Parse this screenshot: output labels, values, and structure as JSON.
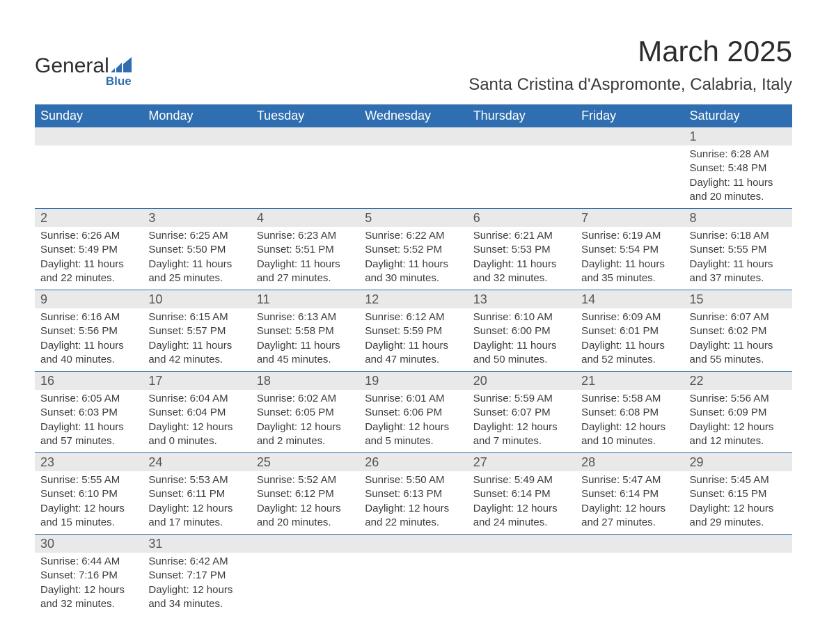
{
  "brand": {
    "name_primary": "General",
    "name_secondary": "Blue",
    "primary_color": "#2d2d2d",
    "accent_color": "#2f6eb0"
  },
  "header": {
    "month_title": "March 2025",
    "location": "Santa Cristina d'Aspromonte, Calabria, Italy"
  },
  "style": {
    "header_bg": "#2f6eb0",
    "header_text": "#ffffff",
    "daynum_bg": "#e9e9e9",
    "row_divider": "#2f6eb0",
    "body_text": "#3c3c3c",
    "title_fontsize": 42,
    "location_fontsize": 24,
    "header_fontsize": 18,
    "daynum_fontsize": 18,
    "body_fontsize": 15,
    "page_bg": "#ffffff"
  },
  "weekdays": [
    "Sunday",
    "Monday",
    "Tuesday",
    "Wednesday",
    "Thursday",
    "Friday",
    "Saturday"
  ],
  "weeks": [
    [
      null,
      null,
      null,
      null,
      null,
      null,
      {
        "day": "1",
        "sunrise": "Sunrise: 6:28 AM",
        "sunset": "Sunset: 5:48 PM",
        "daylight": "Daylight: 11 hours and 20 minutes."
      }
    ],
    [
      {
        "day": "2",
        "sunrise": "Sunrise: 6:26 AM",
        "sunset": "Sunset: 5:49 PM",
        "daylight": "Daylight: 11 hours and 22 minutes."
      },
      {
        "day": "3",
        "sunrise": "Sunrise: 6:25 AM",
        "sunset": "Sunset: 5:50 PM",
        "daylight": "Daylight: 11 hours and 25 minutes."
      },
      {
        "day": "4",
        "sunrise": "Sunrise: 6:23 AM",
        "sunset": "Sunset: 5:51 PM",
        "daylight": "Daylight: 11 hours and 27 minutes."
      },
      {
        "day": "5",
        "sunrise": "Sunrise: 6:22 AM",
        "sunset": "Sunset: 5:52 PM",
        "daylight": "Daylight: 11 hours and 30 minutes."
      },
      {
        "day": "6",
        "sunrise": "Sunrise: 6:21 AM",
        "sunset": "Sunset: 5:53 PM",
        "daylight": "Daylight: 11 hours and 32 minutes."
      },
      {
        "day": "7",
        "sunrise": "Sunrise: 6:19 AM",
        "sunset": "Sunset: 5:54 PM",
        "daylight": "Daylight: 11 hours and 35 minutes."
      },
      {
        "day": "8",
        "sunrise": "Sunrise: 6:18 AM",
        "sunset": "Sunset: 5:55 PM",
        "daylight": "Daylight: 11 hours and 37 minutes."
      }
    ],
    [
      {
        "day": "9",
        "sunrise": "Sunrise: 6:16 AM",
        "sunset": "Sunset: 5:56 PM",
        "daylight": "Daylight: 11 hours and 40 minutes."
      },
      {
        "day": "10",
        "sunrise": "Sunrise: 6:15 AM",
        "sunset": "Sunset: 5:57 PM",
        "daylight": "Daylight: 11 hours and 42 minutes."
      },
      {
        "day": "11",
        "sunrise": "Sunrise: 6:13 AM",
        "sunset": "Sunset: 5:58 PM",
        "daylight": "Daylight: 11 hours and 45 minutes."
      },
      {
        "day": "12",
        "sunrise": "Sunrise: 6:12 AM",
        "sunset": "Sunset: 5:59 PM",
        "daylight": "Daylight: 11 hours and 47 minutes."
      },
      {
        "day": "13",
        "sunrise": "Sunrise: 6:10 AM",
        "sunset": "Sunset: 6:00 PM",
        "daylight": "Daylight: 11 hours and 50 minutes."
      },
      {
        "day": "14",
        "sunrise": "Sunrise: 6:09 AM",
        "sunset": "Sunset: 6:01 PM",
        "daylight": "Daylight: 11 hours and 52 minutes."
      },
      {
        "day": "15",
        "sunrise": "Sunrise: 6:07 AM",
        "sunset": "Sunset: 6:02 PM",
        "daylight": "Daylight: 11 hours and 55 minutes."
      }
    ],
    [
      {
        "day": "16",
        "sunrise": "Sunrise: 6:05 AM",
        "sunset": "Sunset: 6:03 PM",
        "daylight": "Daylight: 11 hours and 57 minutes."
      },
      {
        "day": "17",
        "sunrise": "Sunrise: 6:04 AM",
        "sunset": "Sunset: 6:04 PM",
        "daylight": "Daylight: 12 hours and 0 minutes."
      },
      {
        "day": "18",
        "sunrise": "Sunrise: 6:02 AM",
        "sunset": "Sunset: 6:05 PM",
        "daylight": "Daylight: 12 hours and 2 minutes."
      },
      {
        "day": "19",
        "sunrise": "Sunrise: 6:01 AM",
        "sunset": "Sunset: 6:06 PM",
        "daylight": "Daylight: 12 hours and 5 minutes."
      },
      {
        "day": "20",
        "sunrise": "Sunrise: 5:59 AM",
        "sunset": "Sunset: 6:07 PM",
        "daylight": "Daylight: 12 hours and 7 minutes."
      },
      {
        "day": "21",
        "sunrise": "Sunrise: 5:58 AM",
        "sunset": "Sunset: 6:08 PM",
        "daylight": "Daylight: 12 hours and 10 minutes."
      },
      {
        "day": "22",
        "sunrise": "Sunrise: 5:56 AM",
        "sunset": "Sunset: 6:09 PM",
        "daylight": "Daylight: 12 hours and 12 minutes."
      }
    ],
    [
      {
        "day": "23",
        "sunrise": "Sunrise: 5:55 AM",
        "sunset": "Sunset: 6:10 PM",
        "daylight": "Daylight: 12 hours and 15 minutes."
      },
      {
        "day": "24",
        "sunrise": "Sunrise: 5:53 AM",
        "sunset": "Sunset: 6:11 PM",
        "daylight": "Daylight: 12 hours and 17 minutes."
      },
      {
        "day": "25",
        "sunrise": "Sunrise: 5:52 AM",
        "sunset": "Sunset: 6:12 PM",
        "daylight": "Daylight: 12 hours and 20 minutes."
      },
      {
        "day": "26",
        "sunrise": "Sunrise: 5:50 AM",
        "sunset": "Sunset: 6:13 PM",
        "daylight": "Daylight: 12 hours and 22 minutes."
      },
      {
        "day": "27",
        "sunrise": "Sunrise: 5:49 AM",
        "sunset": "Sunset: 6:14 PM",
        "daylight": "Daylight: 12 hours and 24 minutes."
      },
      {
        "day": "28",
        "sunrise": "Sunrise: 5:47 AM",
        "sunset": "Sunset: 6:14 PM",
        "daylight": "Daylight: 12 hours and 27 minutes."
      },
      {
        "day": "29",
        "sunrise": "Sunrise: 5:45 AM",
        "sunset": "Sunset: 6:15 PM",
        "daylight": "Daylight: 12 hours and 29 minutes."
      }
    ],
    [
      {
        "day": "30",
        "sunrise": "Sunrise: 6:44 AM",
        "sunset": "Sunset: 7:16 PM",
        "daylight": "Daylight: 12 hours and 32 minutes."
      },
      {
        "day": "31",
        "sunrise": "Sunrise: 6:42 AM",
        "sunset": "Sunset: 7:17 PM",
        "daylight": "Daylight: 12 hours and 34 minutes."
      },
      null,
      null,
      null,
      null,
      null
    ]
  ]
}
